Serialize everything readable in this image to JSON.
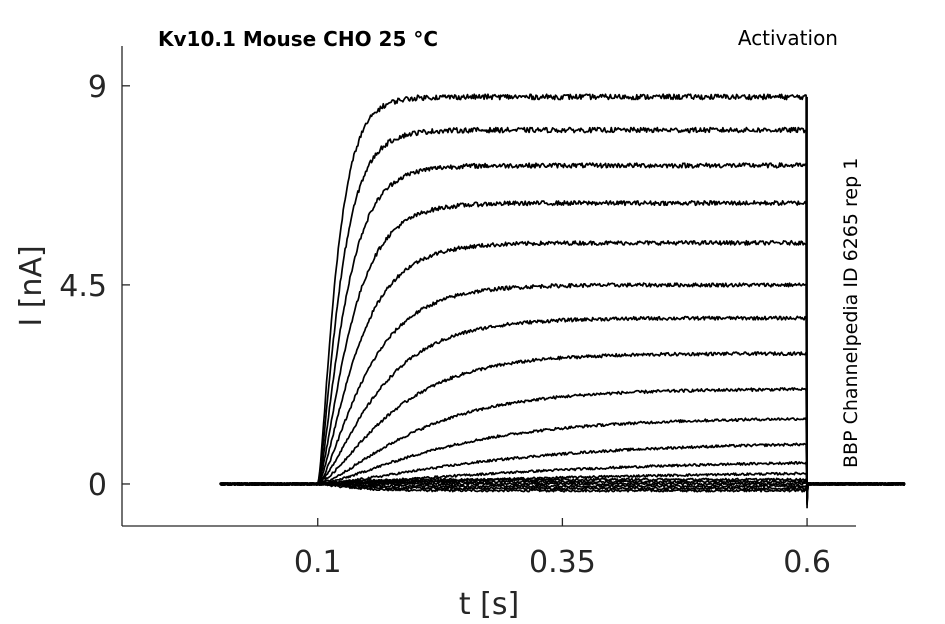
{
  "chart_data": {
    "type": "line",
    "title": "Kv10.1  Mouse  CHO  25 °C",
    "corner_label": "Activation",
    "side_label": "BBP Channelpedia ID 6265 rep 1",
    "xlabel": "t [s]",
    "ylabel": "I [nA]",
    "xlim": [
      -0.1,
      0.65
    ],
    "ylim": [
      -0.95,
      9.9
    ],
    "xticks": [
      "0.1",
      "0.35",
      "0.6"
    ],
    "xtick_values": [
      0.1,
      0.35,
      0.6
    ],
    "yticks": [
      "0",
      "4.5",
      "9"
    ],
    "ytick_values": [
      0,
      4.5,
      9
    ],
    "grid": false,
    "legend": "none",
    "line_color": "#000000",
    "stimulus_window": [
      0.1,
      0.6
    ],
    "trace_time_range": [
      0.0,
      0.7
    ],
    "series": [
      {
        "steady_state": -0.15,
        "tau": 0.03
      },
      {
        "steady_state": -0.1,
        "tau": 0.03
      },
      {
        "steady_state": -0.05,
        "tau": 0.03
      },
      {
        "steady_state": 0.0,
        "tau": 0.03
      },
      {
        "steady_state": 0.05,
        "tau": 0.03
      },
      {
        "steady_state": 0.1,
        "tau": 0.03
      },
      {
        "steady_state": 0.3,
        "tau": 0.25
      },
      {
        "steady_state": 0.55,
        "tau": 0.2
      },
      {
        "steady_state": 0.95,
        "tau": 0.15
      },
      {
        "steady_state": 1.5,
        "tau": 0.11
      },
      {
        "steady_state": 2.15,
        "tau": 0.085
      },
      {
        "steady_state": 2.95,
        "tau": 0.065
      },
      {
        "steady_state": 3.75,
        "tau": 0.052
      },
      {
        "steady_state": 4.5,
        "tau": 0.042
      },
      {
        "steady_state": 5.45,
        "tau": 0.034
      },
      {
        "steady_state": 6.35,
        "tau": 0.028
      },
      {
        "steady_state": 7.2,
        "tau": 0.023
      },
      {
        "steady_state": 8.0,
        "tau": 0.019
      },
      {
        "steady_state": 8.75,
        "tau": 0.016
      }
    ]
  }
}
